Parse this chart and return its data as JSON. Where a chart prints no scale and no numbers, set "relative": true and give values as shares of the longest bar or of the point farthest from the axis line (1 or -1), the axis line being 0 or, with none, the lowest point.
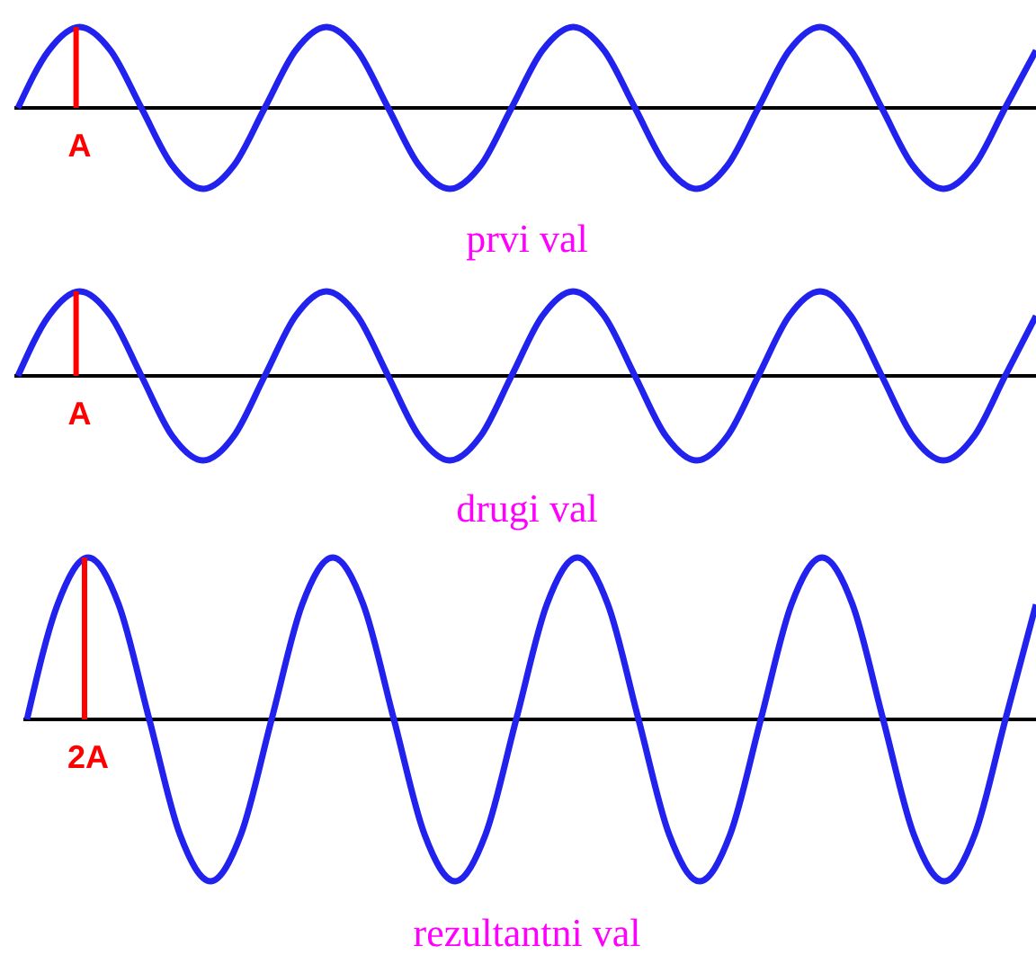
{
  "chart_data": [
    {
      "type": "line",
      "title": "prvi val",
      "relative": true,
      "annotations": [
        "A"
      ],
      "categories": [
        null,
        null,
        null,
        null,
        null,
        null,
        null,
        null,
        null,
        null,
        null,
        null,
        null,
        null,
        null,
        null,
        null,
        null,
        null,
        null,
        null,
        null,
        null,
        null,
        null,
        null,
        null,
        null,
        null,
        null,
        null,
        null,
        null,
        null
      ],
      "series": [
        {
          "color": "#2222ee",
          "values": [
            0,
            0.71,
            1,
            0.71,
            0,
            -0.71,
            -1,
            -0.71,
            0,
            0.71,
            1,
            0.71,
            0,
            -0.71,
            -1,
            -0.71,
            0,
            0.71,
            1,
            0.71,
            0,
            -0.71,
            -1,
            -0.71,
            0,
            0.71,
            1,
            0.71,
            0,
            -0.71,
            -1,
            -0.71,
            0,
            0.71
          ]
        }
      ]
    },
    {
      "type": "line",
      "title": "drugi val",
      "relative": true,
      "annotations": [
        "A"
      ],
      "categories": [
        null,
        null,
        null,
        null,
        null,
        null,
        null,
        null,
        null,
        null,
        null,
        null,
        null,
        null,
        null,
        null,
        null,
        null,
        null,
        null,
        null,
        null,
        null,
        null,
        null,
        null,
        null,
        null,
        null,
        null,
        null,
        null,
        null,
        null
      ],
      "series": [
        {
          "color": "#2222ee",
          "values": [
            0,
            0.71,
            1,
            0.71,
            0,
            -0.71,
            -1,
            -0.71,
            0,
            0.71,
            1,
            0.71,
            0,
            -0.71,
            -1,
            -0.71,
            0,
            0.71,
            1,
            0.71,
            0,
            -0.71,
            -1,
            -0.71,
            0,
            0.71,
            1,
            0.71,
            0,
            -0.71,
            -1,
            -0.71,
            0,
            0.71
          ]
        }
      ]
    },
    {
      "type": "line",
      "title": "rezultantni val",
      "relative": true,
      "annotations": [
        "2A"
      ],
      "categories": [
        null,
        null,
        null,
        null,
        null,
        null,
        null,
        null,
        null,
        null,
        null,
        null,
        null,
        null,
        null,
        null,
        null,
        null,
        null,
        null,
        null,
        null,
        null,
        null,
        null,
        null,
        null,
        null,
        null,
        null,
        null,
        null,
        null,
        null
      ],
      "series": [
        {
          "color": "#2222ee",
          "values": [
            0,
            0.71,
            1,
            0.71,
            0,
            -0.71,
            -1,
            -0.71,
            0,
            0.71,
            1,
            0.71,
            0,
            -0.71,
            -1,
            -0.71,
            0,
            0.71,
            1,
            0.71,
            0,
            -0.71,
            -1,
            -0.71,
            0,
            0.71,
            1,
            0.71,
            0,
            -0.71,
            -1,
            -0.71,
            0,
            0.71
          ]
        }
      ]
    }
  ]
}
